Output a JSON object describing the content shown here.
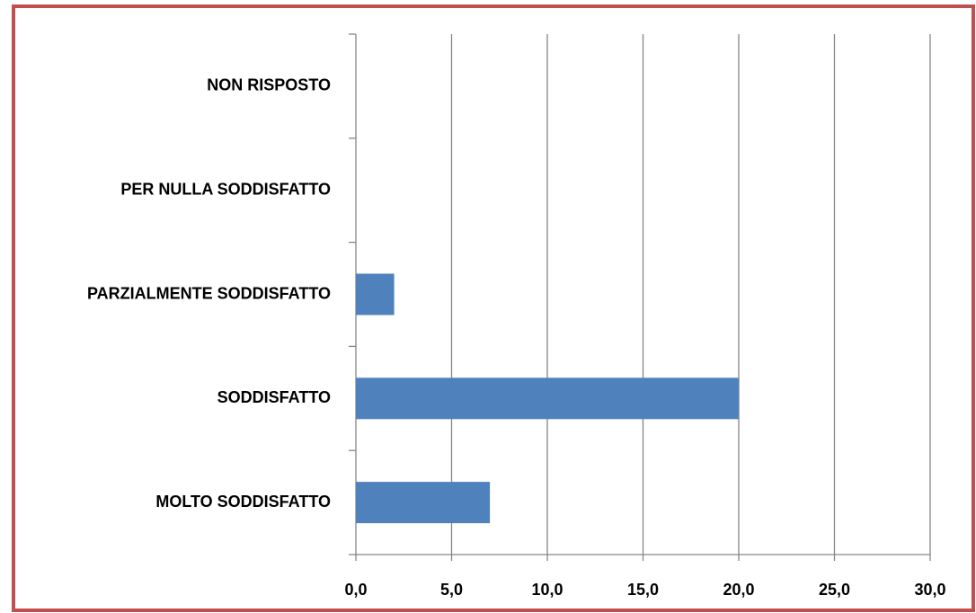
{
  "chart_data": {
    "type": "hbar",
    "categories": [
      "MOLTO SODDISFATTO",
      "SODDISFATTO",
      "PARZIALMENTE SODDISFATTO",
      "PER NULLA SODDISFATTO",
      "NON RISPOSTO"
    ],
    "values": [
      7,
      20,
      2,
      0,
      0
    ],
    "color": "#4f81bd",
    "xlim": [
      0,
      30
    ],
    "xticks": [
      {
        "value": 0,
        "label": "0,0"
      },
      {
        "value": 5,
        "label": "5,0"
      },
      {
        "value": 10,
        "label": "10,0"
      },
      {
        "value": 15,
        "label": "15,0"
      },
      {
        "value": 20,
        "label": "20,0"
      },
      {
        "value": 25,
        "label": "25,0"
      },
      {
        "value": 30,
        "label": "30,0"
      }
    ],
    "grid": true
  }
}
